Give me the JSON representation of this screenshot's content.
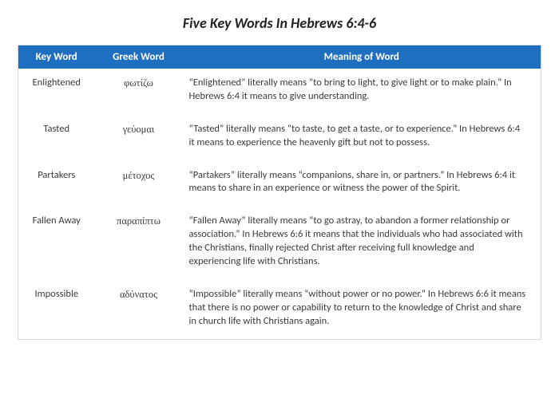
{
  "title": "Five Key Words In Hebrews 6:4-6",
  "headers": {
    "col1": "Key Word",
    "col2": "Greek Word",
    "col3": "Meaning of Word"
  },
  "rows": [
    {
      "keyword": "Enlightened",
      "greek": "φωτίζω",
      "meaning": "“Enlightened” literally means “to bring to light, to give light or to make plain.” In Hebrews 6:4 it means to give understanding."
    },
    {
      "keyword": "Tasted",
      "greek": "γεύομαι",
      "meaning": "“Tasted” literally means “to taste, to get a taste, or to experience.” In Hebrews 6:4 it means to experience the heavenly gift but not to possess."
    },
    {
      "keyword": "Partakers",
      "greek": "μέτοχος",
      "meaning": "“Partakers” literally means “companions, share in, or partners.” In Hebrews 6:4 it means to share in an experience or witness the power of the Spirit."
    },
    {
      "keyword": "Fallen Away",
      "greek": "παραπίπτω",
      "meaning": "“Fallen Away” literally means “to go astray, to abandon a former relationship or association.” In Hebrews 6:6 it means that the individuals who had associated with the Christians, finally rejected Christ after receiving full knowledge and experiencing life with Christians."
    },
    {
      "keyword": "Impossible",
      "greek": "αδύνατος",
      "meaning": "“Impossible” literally means “without power or no power.” In Hebrews 6:6 it means that there is no power or capability to return to the knowledge of Christ and share in church life with Christians again."
    }
  ],
  "colors": {
    "header_bg": "#1f6fc1",
    "header_text": "#ffffff",
    "border": "#d9d9d9",
    "body_text": "#3a3a3a"
  }
}
